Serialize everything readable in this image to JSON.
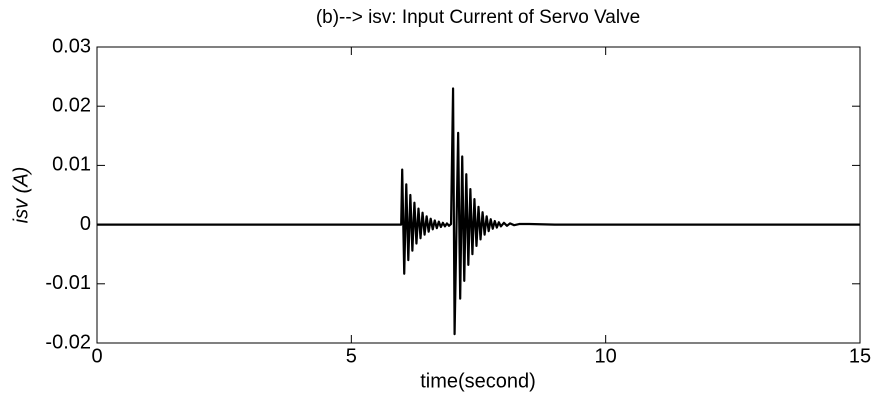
{
  "chart_data": {
    "type": "line",
    "title": "(b)--> isv: Input Current of Servo Valve",
    "xlabel": "time(second)",
    "ylabel": "isv (A)",
    "x": [
      0,
      5.98,
      6.0,
      6.04,
      6.08,
      6.12,
      6.16,
      6.2,
      6.24,
      6.28,
      6.32,
      6.36,
      6.4,
      6.44,
      6.48,
      6.52,
      6.56,
      6.6,
      6.64,
      6.68,
      6.72,
      6.76,
      6.8,
      6.84,
      6.88,
      6.92,
      6.96,
      7.0,
      7.03,
      7.1,
      7.14,
      7.18,
      7.22,
      7.26,
      7.3,
      7.34,
      7.38,
      7.42,
      7.46,
      7.5,
      7.54,
      7.58,
      7.62,
      7.66,
      7.7,
      7.74,
      7.78,
      7.82,
      7.86,
      7.9,
      7.94,
      8.0,
      8.06,
      8.12,
      8.2,
      8.3,
      8.5,
      9.0,
      15
    ],
    "series": [
      {
        "name": "isv",
        "color": "#000000",
        "values": [
          0,
          0,
          0.0093,
          -0.0083,
          0.0068,
          -0.006,
          0.005,
          -0.0044,
          0.0037,
          -0.0032,
          0.0027,
          -0.0023,
          0.002,
          -0.0017,
          0.0014,
          -0.0012,
          0.001,
          -0.0008,
          0.0007,
          -0.0006,
          0.0005,
          -0.0004,
          0.0003,
          -0.0003,
          0.0002,
          -0.0002,
          0.0001,
          0.023,
          -0.0185,
          0.0155,
          -0.0125,
          0.0115,
          -0.0095,
          0.0085,
          -0.0068,
          0.006,
          -0.005,
          0.0043,
          -0.0036,
          0.003,
          -0.0025,
          0.0021,
          -0.0017,
          0.0014,
          -0.0011,
          0.0009,
          -0.0007,
          0.0006,
          -0.0005,
          0.0004,
          -0.0003,
          0.0003,
          -0.0002,
          0.0002,
          -0.0001,
          0.0001,
          0.0001,
          0,
          0
        ]
      }
    ],
    "xlim": [
      0,
      15
    ],
    "xticks": [
      0,
      5,
      10,
      15
    ],
    "ylim": [
      -0.02,
      0.03
    ],
    "yticks": [
      -0.02,
      -0.01,
      0,
      0.01,
      0.02,
      0.03
    ],
    "grid": false
  }
}
